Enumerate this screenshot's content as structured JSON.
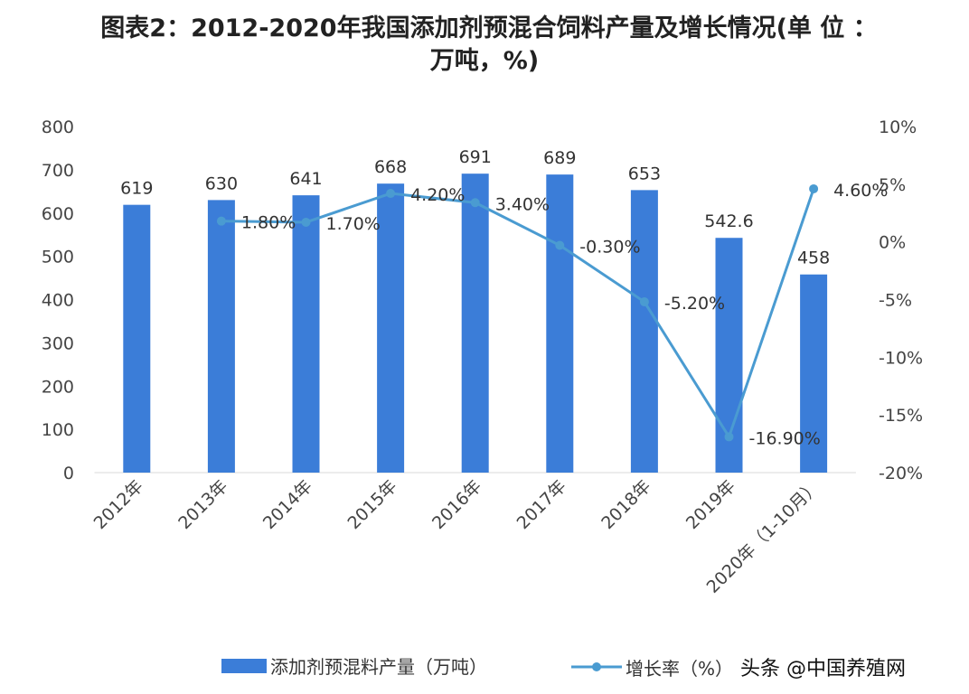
{
  "title_line1": "图表2：2012-2020年我国添加剂预混合饲料产量及增长情况(单 位 ：",
  "title_line2": "万吨，%)",
  "watermark": "头条 @中国养殖网",
  "chart_data": {
    "type": "bar+line",
    "title": "图表2：2012-2020年我国添加剂预混合饲料产量及增长情况(单 位 ：万吨，%)",
    "categories": [
      "2012年",
      "2013年",
      "2014年",
      "2015年",
      "2016年",
      "2017年",
      "2018年",
      "2019年",
      "2020年（1-10月）"
    ],
    "series": [
      {
        "name": "添加剂预混料产量（万吨）",
        "type": "bar",
        "axis": "left",
        "color": "#3b7dd8",
        "values": [
          619,
          630,
          641,
          668,
          691,
          689,
          653,
          542.6,
          458
        ],
        "labels": [
          "619",
          "630",
          "641",
          "668",
          "691",
          "689",
          "653",
          "542.6",
          "458"
        ]
      },
      {
        "name": "增长率（%）",
        "type": "line",
        "axis": "right",
        "color": "#4a9bd1",
        "values": [
          null,
          1.8,
          1.7,
          4.2,
          3.4,
          -0.3,
          -5.2,
          -16.9,
          4.6
        ],
        "labels": [
          "",
          "1.80%",
          "1.70%",
          "4.20%",
          "3.40%",
          "-0.30%",
          "-5.20%",
          "-16.90%",
          "4.60%"
        ]
      }
    ],
    "y_left": {
      "lim": [
        0,
        800
      ],
      "ticks": [
        "0",
        "100",
        "200",
        "300",
        "400",
        "500",
        "600",
        "700",
        "800"
      ]
    },
    "y_right": {
      "lim": [
        -20,
        10
      ],
      "ticks": [
        "-20%",
        "-15%",
        "-10%",
        "-5%",
        "0%",
        "5%",
        "10%"
      ]
    },
    "grid": false,
    "legend": "bottom"
  }
}
